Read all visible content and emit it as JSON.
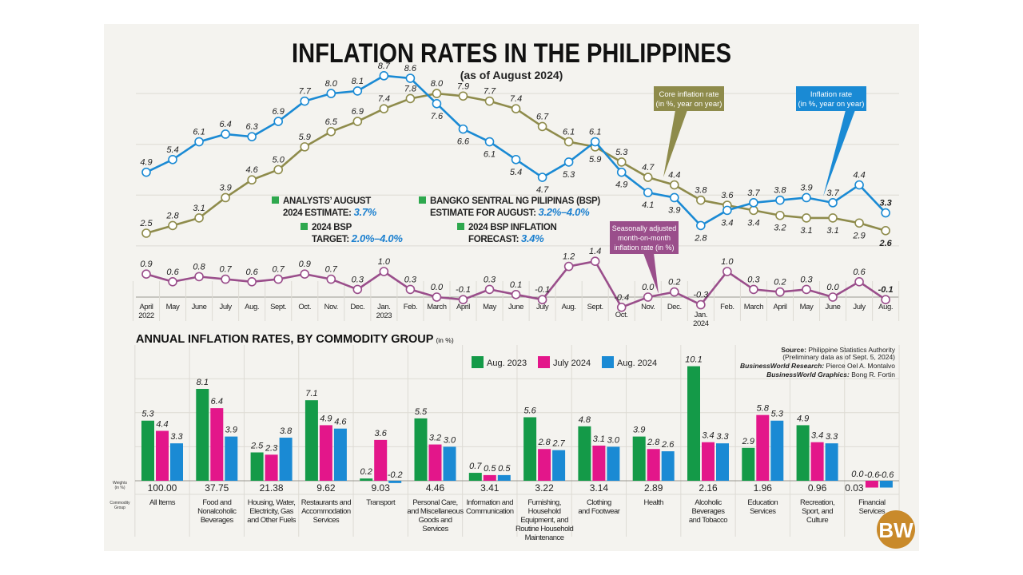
{
  "title": "INFLATION RATES IN THE PHILIPPINES",
  "subtitle": "(as of August 2024)",
  "colors": {
    "background": "#f4f3ef",
    "inflation": "#1a8ad4",
    "core": "#8e8b4b",
    "mom": "#9a4e8b",
    "aug2023": "#149a48",
    "jul2024": "#e3168a",
    "aug2024": "#1a8ad4",
    "note_square": "#2ea84e",
    "logo": "#c98a2b"
  },
  "callouts": {
    "core": [
      "Core inflation rate",
      "(in %, year on year)"
    ],
    "inflation": [
      "Inflation rate",
      "(in %, year on year)"
    ],
    "mom": [
      "Seasonally adjusted",
      "month-on-month",
      "inflation rate (in %)"
    ]
  },
  "notes": [
    {
      "line1": "ANALYSTS’ AUGUST",
      "line2": "2024 ESTIMATE:",
      "value": "3.7%"
    },
    {
      "line1": "2024 BSP",
      "line2": "TARGET:",
      "value": "2.0%–4.0%"
    },
    {
      "line1": "BANGKO SENTRAL NG PILIPINAS (BSP)",
      "line2": "ESTIMATE FOR AUGUST:",
      "value": "3.2%–4.0%"
    },
    {
      "line1": "2024 BSP INFLATION",
      "line2": "FORECAST:",
      "value": "3.4%"
    }
  ],
  "chart_data": [
    {
      "type": "line",
      "x": [
        "April 2022",
        "May",
        "June",
        "July",
        "Aug.",
        "Sept.",
        "Oct.",
        "Nov.",
        "Dec.",
        "Jan. 2023",
        "Feb.",
        "March",
        "April",
        "May",
        "June",
        "July",
        "Aug.",
        "Sept.",
        "Oct.",
        "Nov.",
        "Dec.",
        "Jan. 2024",
        "Feb.",
        "March",
        "April",
        "May",
        "June",
        "July",
        "Aug."
      ],
      "tick_labels": [
        "April",
        "May",
        "June",
        "July",
        "Aug.",
        "Sept.",
        "Oct.",
        "Nov.",
        "Dec.",
        "Jan.",
        "Feb.",
        "March",
        "April",
        "May",
        "June",
        "July",
        "Aug.",
        "Sept.",
        "Oct.",
        "Nov.",
        "Dec.",
        "Jan.",
        "Feb.",
        "March",
        "April",
        "May",
        "June",
        "July",
        "Aug."
      ],
      "year_labels": {
        "0": "2022",
        "9": "2023",
        "21": "2024"
      },
      "series": [
        {
          "name": "Inflation rate (in %, year on year)",
          "values": [
            4.9,
            5.4,
            6.1,
            6.4,
            6.3,
            6.9,
            7.7,
            8.0,
            8.1,
            8.7,
            8.6,
            7.6,
            6.6,
            6.1,
            5.4,
            4.7,
            5.3,
            6.1,
            4.9,
            4.1,
            3.9,
            2.8,
            3.4,
            3.7,
            3.8,
            3.9,
            3.7,
            4.4,
            3.3
          ]
        },
        {
          "name": "Core inflation rate (in %, year on year)",
          "values": [
            2.5,
            2.8,
            3.1,
            3.9,
            4.6,
            5.0,
            5.9,
            6.5,
            6.9,
            7.4,
            7.8,
            8.0,
            7.9,
            7.7,
            7.4,
            6.7,
            6.1,
            5.9,
            5.3,
            4.7,
            4.4,
            3.8,
            3.6,
            3.4,
            3.2,
            3.1,
            3.1,
            2.9,
            2.6
          ]
        },
        {
          "name": "Seasonally adjusted month-on-month inflation rate (in %)",
          "values": [
            0.9,
            0.6,
            0.8,
            0.7,
            0.6,
            0.7,
            0.9,
            0.7,
            0.3,
            1.0,
            0.3,
            0.0,
            -0.1,
            0.3,
            0.1,
            -0.1,
            1.2,
            1.4,
            -0.4,
            0.0,
            0.2,
            -0.3,
            1.0,
            0.3,
            0.2,
            0.3,
            0.0,
            0.6,
            -0.1
          ]
        }
      ],
      "ylim_yoy": [
        2,
        9
      ],
      "ylim_mom": [
        -0.5,
        1.5
      ],
      "grid": true
    },
    {
      "type": "bar",
      "title": "ANNUAL INFLATION RATES, BY COMMODITY GROUP",
      "unit": "(in %)",
      "weights_label": [
        "Weights",
        "(in %)"
      ],
      "group_label": [
        "Commodity",
        "Group"
      ],
      "categories": [
        [
          "All Items"
        ],
        [
          "Food and",
          "Nonalcoholic",
          "Beverages"
        ],
        [
          "Housing, Water,",
          "Electricity, Gas",
          "and Other Fuels"
        ],
        [
          "Restaurants and",
          "Accommodation",
          "Services"
        ],
        [
          "Transport"
        ],
        [
          "Personal Care,",
          "and Miscellaneous",
          "Goods and",
          "Services"
        ],
        [
          "Information and",
          "Communication"
        ],
        [
          "Furnishing,",
          "Household",
          "Equipment, and",
          "Routine Household",
          "Maintenance"
        ],
        [
          "Clothing",
          "and Footwear"
        ],
        [
          "Health"
        ],
        [
          "Alcoholic",
          "Beverages",
          "and Tobacco"
        ],
        [
          "Education",
          "Services"
        ],
        [
          "Recreation,",
          "Sport, and",
          "Culture"
        ],
        [
          "Financial",
          "Services"
        ]
      ],
      "weights": [
        "100.00",
        "37.75",
        "21.38",
        "9.62",
        "9.03",
        "4.46",
        "3.41",
        "3.22",
        "3.14",
        "2.89",
        "2.16",
        "1.96",
        "0.96",
        "0.03"
      ],
      "series": [
        {
          "name": "Aug. 2023",
          "values": [
            5.3,
            8.1,
            2.5,
            7.1,
            0.2,
            5.5,
            0.7,
            5.6,
            4.8,
            3.9,
            10.1,
            2.9,
            4.9,
            0.0
          ]
        },
        {
          "name": "July 2024",
          "values": [
            4.4,
            6.4,
            2.3,
            4.9,
            3.6,
            3.2,
            0.5,
            2.8,
            3.1,
            2.8,
            3.4,
            5.8,
            3.4,
            -0.6
          ]
        },
        {
          "name": "Aug. 2024",
          "values": [
            3.3,
            3.9,
            3.8,
            4.6,
            -0.2,
            3.0,
            0.5,
            2.7,
            3.0,
            2.6,
            3.3,
            5.3,
            3.3,
            -0.6
          ]
        }
      ],
      "ylim": [
        -1,
        11
      ],
      "grid": true,
      "legend": "top"
    }
  ],
  "source": {
    "source_label": "Source:",
    "source_value": " Philippine Statistics Authority",
    "prelim": "(Preliminary data as of Sept. 5, 2024)",
    "research_label": "BusinessWorld Research:",
    "research_value": " Pierce Oel A. Montalvo",
    "graphics_label": "BusinessWorld Graphics:",
    "graphics_value": " Bong R. Fortin"
  },
  "logo": "BW"
}
